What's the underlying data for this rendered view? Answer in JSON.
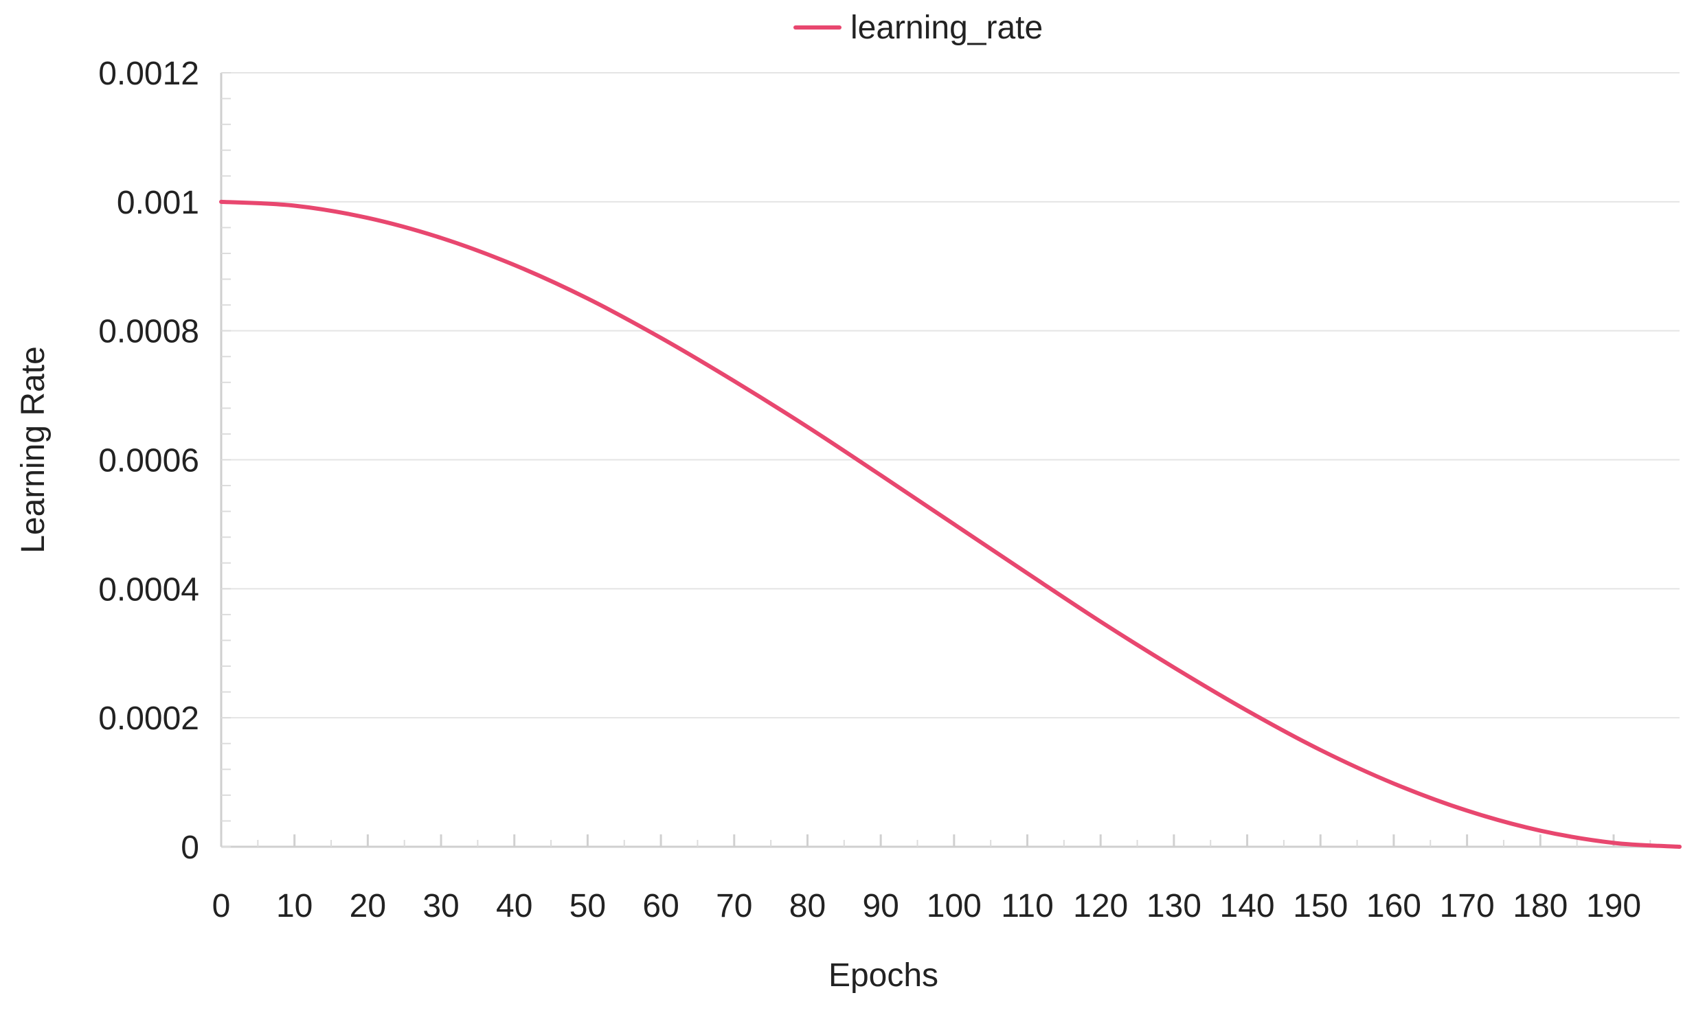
{
  "chart_data": {
    "type": "line",
    "title": "",
    "xlabel": "Epochs",
    "ylabel": "Learning Rate",
    "xlim": [
      0,
      199
    ],
    "ylim": [
      0,
      0.0012
    ],
    "x_ticks": [
      0,
      10,
      20,
      30,
      40,
      50,
      60,
      70,
      80,
      90,
      100,
      110,
      120,
      130,
      140,
      150,
      160,
      170,
      180,
      190
    ],
    "x_tick_labels": [
      "0",
      "10",
      "20",
      "30",
      "40",
      "50",
      "60",
      "70",
      "80",
      "90",
      "100",
      "110",
      "120",
      "130",
      "140",
      "150",
      "160",
      "170",
      "180",
      "190"
    ],
    "y_ticks": [
      0,
      0.0002,
      0.0004,
      0.0006,
      0.0008,
      0.001,
      0.0012
    ],
    "y_tick_labels": [
      "0",
      "0.0002",
      "0.0004",
      "0.0006",
      "0.0008",
      "0.001",
      "0.0012"
    ],
    "grid": true,
    "legend_position": "top-center",
    "series": [
      {
        "name": "learning_rate",
        "color": "#e8476f",
        "x": [
          0,
          10,
          20,
          30,
          40,
          50,
          60,
          70,
          80,
          90,
          100,
          110,
          120,
          130,
          140,
          150,
          160,
          170,
          180,
          190,
          199
        ],
        "y": [
          0.001,
          0.000994,
          0.000975,
          0.000944,
          0.000902,
          0.00085,
          0.000789,
          0.000722,
          0.000651,
          0.000576,
          0.0005,
          0.000424,
          0.000349,
          0.000278,
          0.000211,
          0.00015,
          9.8e-05,
          5.6e-05,
          2.5e-05,
          6e-06,
          0.0
        ]
      }
    ]
  }
}
